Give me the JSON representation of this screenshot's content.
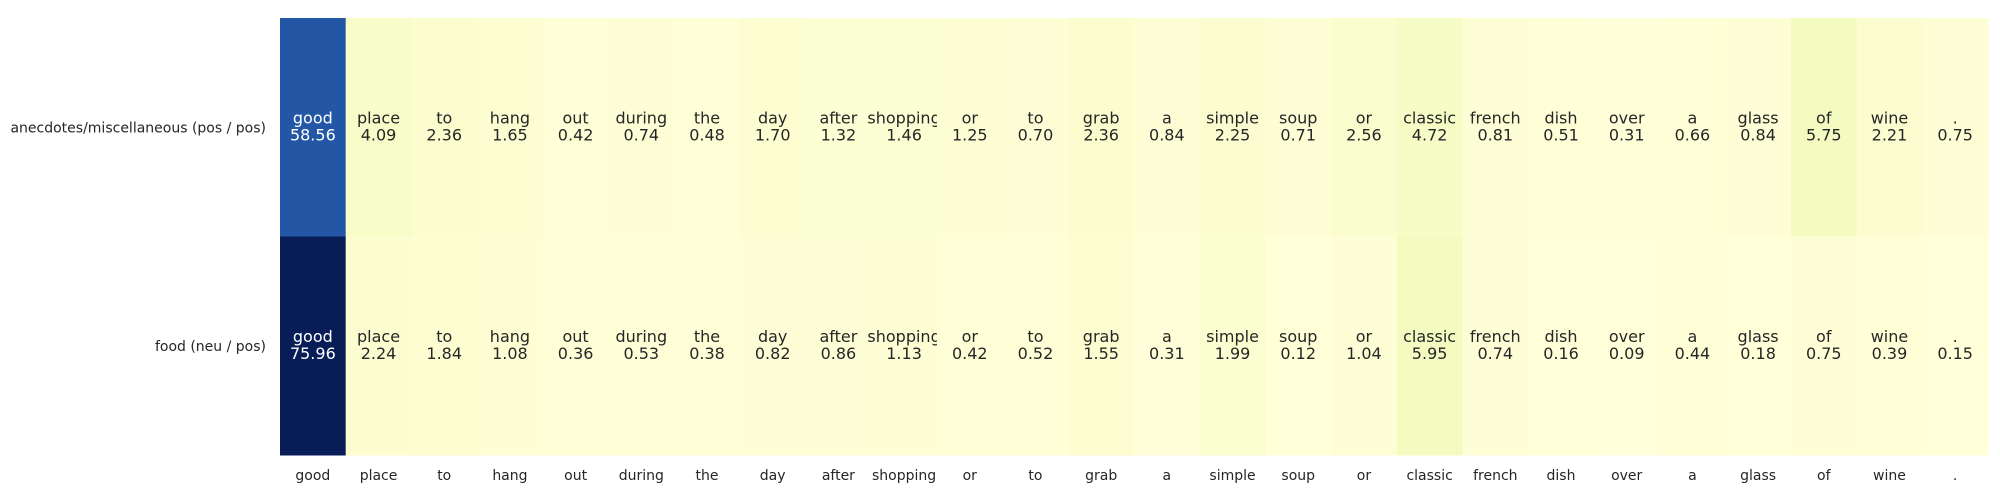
{
  "chart_data": {
    "type": "heatmap",
    "colormap": "YlGnBu",
    "value_range": [
      0,
      75.96
    ],
    "columns": [
      "good",
      "place",
      "to",
      "hang",
      "out",
      "during",
      "the",
      "day",
      "after",
      "shopping",
      "or",
      "to",
      "grab",
      "a",
      "simple",
      "soup",
      "or",
      "classic",
      "french",
      "dish",
      "over",
      "a",
      "glass",
      "of",
      "wine",
      "."
    ],
    "rows": [
      {
        "label": "anecdotes/miscellaneous (pos / pos)",
        "values": [
          58.56,
          4.09,
          2.36,
          1.65,
          0.42,
          0.74,
          0.48,
          1.7,
          1.32,
          1.46,
          1.25,
          0.7,
          2.36,
          0.84,
          2.25,
          0.71,
          2.56,
          4.72,
          0.81,
          0.51,
          0.31,
          0.66,
          0.84,
          5.75,
          2.21,
          0.75
        ],
        "value_labels": [
          "58.56",
          "4.09",
          "2.36",
          "1.65",
          "0.42",
          "0.74",
          "0.48",
          "1.70",
          "1.32",
          "1.46",
          "1.25",
          "0.70",
          "2.36",
          "0.84",
          "2.25",
          "0.71",
          "2.56",
          "4.72",
          "0.81",
          "0.51",
          "0.31",
          "0.66",
          "0.84",
          "5.75",
          "2.21",
          "0.75"
        ]
      },
      {
        "label": "food (neu / pos)",
        "values": [
          75.96,
          2.24,
          1.84,
          1.08,
          0.36,
          0.53,
          0.38,
          0.82,
          0.86,
          1.13,
          0.42,
          0.52,
          1.55,
          0.31,
          1.99,
          0.12,
          1.04,
          5.95,
          0.74,
          0.16,
          0.09,
          0.44,
          0.18,
          0.75,
          0.39,
          0.15
        ],
        "value_labels": [
          "75.96",
          "2.24",
          "1.84",
          "1.08",
          "0.36",
          "0.53",
          "0.38",
          "0.82",
          "0.86",
          "1.13",
          "0.42",
          "0.52",
          "1.55",
          "0.31",
          "1.99",
          "0.12",
          "1.04",
          "5.95",
          "0.74",
          "0.16",
          "0.09",
          "0.44",
          "0.18",
          "0.75",
          "0.39",
          "0.15"
        ]
      }
    ],
    "grid": false,
    "legend": "none"
  }
}
